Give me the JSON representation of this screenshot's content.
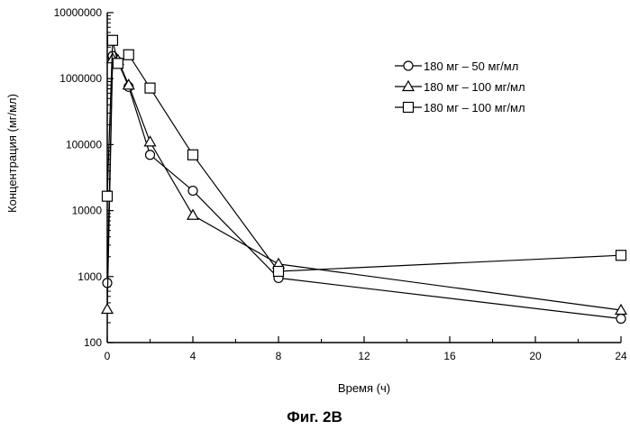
{
  "caption": "Фиг. 2В",
  "chart_data": {
    "type": "line",
    "title": "",
    "xlabel": "Время (ч)",
    "ylabel": "Концентрация (мг/мл)",
    "x_scale": "linear",
    "y_scale": "log",
    "xlim": [
      0,
      24
    ],
    "ylim": [
      100,
      10000000
    ],
    "x_ticks": [
      0,
      4,
      8,
      12,
      16,
      20,
      24
    ],
    "x_tick_labels": [
      "0",
      "4",
      "8",
      "12",
      "16",
      "20",
      "24"
    ],
    "y_ticks": [
      100,
      1000,
      10000,
      100000,
      1000000,
      10000000
    ],
    "y_tick_labels": [
      "100",
      "1000",
      "10000",
      "100000",
      "1000000",
      "10000000"
    ],
    "grid": false,
    "legend_position": "top-right",
    "series": [
      {
        "name": "180 мг – 50 мг/мл",
        "marker": "circle",
        "points": [
          [
            0,
            800
          ],
          [
            0.25,
            2200000
          ],
          [
            0.5,
            1800000
          ],
          [
            1,
            750000
          ],
          [
            2,
            70000
          ],
          [
            4,
            20000
          ],
          [
            8,
            950
          ],
          [
            24,
            230
          ]
        ]
      },
      {
        "name": "180 мг – 100 мг/мл",
        "marker": "triangle",
        "points": [
          [
            0,
            320
          ],
          [
            0.25,
            2000000
          ],
          [
            0.5,
            1900000
          ],
          [
            1,
            800000
          ],
          [
            2,
            110000
          ],
          [
            4,
            8500
          ],
          [
            8,
            1550
          ],
          [
            24,
            310
          ]
        ]
      },
      {
        "name": "180 мг – 100 мг/мл",
        "marker": "square",
        "points": [
          [
            0,
            16500
          ],
          [
            0.25,
            3800000
          ],
          [
            0.5,
            1700000
          ],
          [
            1,
            2300000
          ],
          [
            2,
            720000
          ],
          [
            4,
            70000
          ],
          [
            8,
            1200
          ],
          [
            24,
            2100
          ]
        ]
      }
    ]
  }
}
